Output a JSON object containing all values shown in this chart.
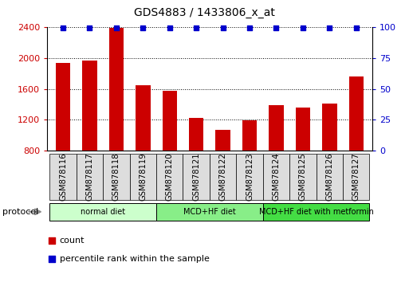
{
  "title": "GDS4883 / 1433806_x_at",
  "samples": [
    "GSM878116",
    "GSM878117",
    "GSM878118",
    "GSM878119",
    "GSM878120",
    "GSM878121",
    "GSM878122",
    "GSM878123",
    "GSM878124",
    "GSM878125",
    "GSM878126",
    "GSM878127"
  ],
  "counts": [
    1930,
    1960,
    2390,
    1650,
    1570,
    1230,
    1070,
    1190,
    1390,
    1360,
    1410,
    1760
  ],
  "percentile_ranks": [
    99,
    99,
    99,
    99,
    99,
    99,
    99,
    99,
    99,
    99,
    99,
    99
  ],
  "bar_color": "#cc0000",
  "dot_color": "#0000cc",
  "ylim_left": [
    800,
    2400
  ],
  "ylim_right": [
    0,
    100
  ],
  "yticks_left": [
    800,
    1200,
    1600,
    2000,
    2400
  ],
  "yticks_right": [
    0,
    25,
    50,
    75,
    100
  ],
  "groups": [
    {
      "label": "normal diet",
      "start": 0,
      "end": 4,
      "color": "#ccffcc"
    },
    {
      "label": "MCD+HF diet",
      "start": 4,
      "end": 8,
      "color": "#88ee88"
    },
    {
      "label": "MCD+HF diet with metformin",
      "start": 8,
      "end": 12,
      "color": "#44dd44"
    }
  ],
  "legend_count_label": "count",
  "legend_pct_label": "percentile rank within the sample",
  "protocol_label": "protocol",
  "bg_color": "#ffffff",
  "grid_color": "#000000",
  "tick_label_color_left": "#cc0000",
  "tick_label_color_right": "#0000cc",
  "xtick_box_color": "#dddddd",
  "title_fontsize": 10
}
